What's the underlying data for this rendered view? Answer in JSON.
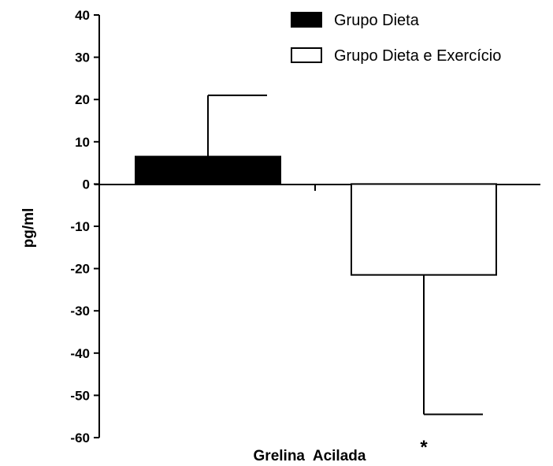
{
  "chart_data": {
    "type": "bar",
    "categories": [
      "Grelina  Acilada"
    ],
    "xlabel": "Grelina  Acilada",
    "ylabel": "pg/ml",
    "ylim": [
      -60,
      40
    ],
    "yticks": [
      "40",
      "30",
      "20",
      "10",
      "0",
      "-10",
      "-20",
      "-30",
      "-40",
      "-50",
      "-60"
    ],
    "ytick_values": [
      40,
      30,
      20,
      10,
      0,
      -10,
      -20,
      -30,
      -40,
      -50,
      -60
    ],
    "grid": false,
    "legend_position": "top-right",
    "series": [
      {
        "name": "Grupo Dieta",
        "value": 6.5,
        "error": 14.5,
        "fill": "#000000"
      },
      {
        "name": "Grupo Dieta e Exercício",
        "value": -21.5,
        "error": 33.0,
        "fill": "#ffffff"
      }
    ],
    "annotations": [
      {
        "text": "*",
        "series_index": 1
      }
    ]
  }
}
